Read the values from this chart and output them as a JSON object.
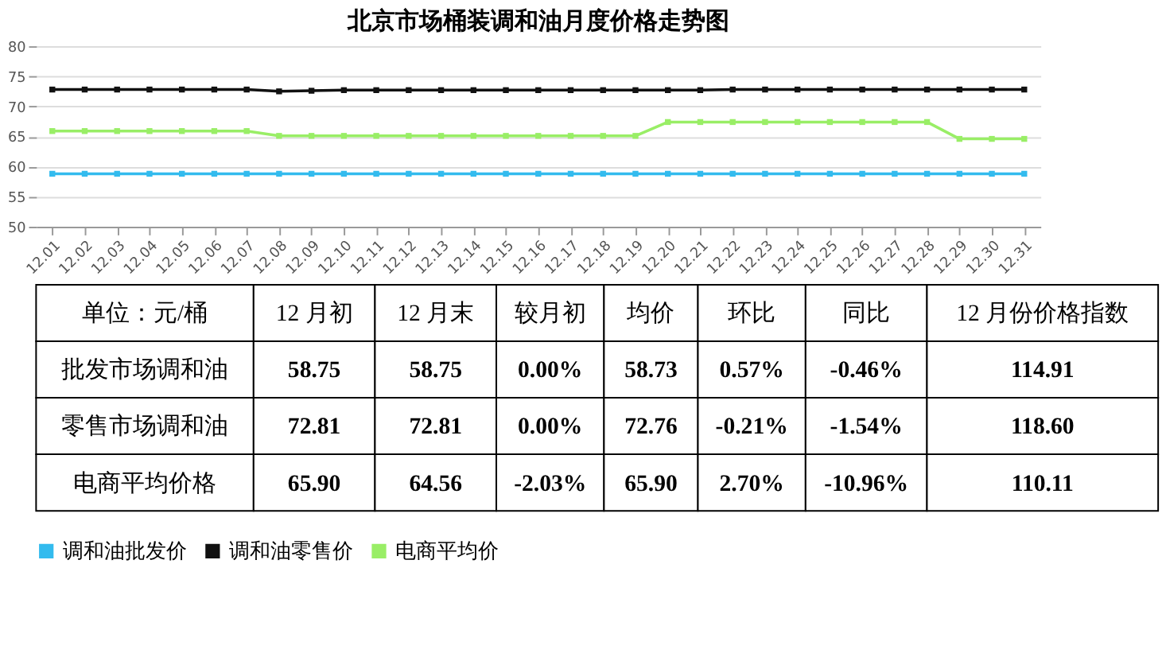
{
  "chart_data": [
    {
      "type": "line",
      "title": "北京市场桶装调和油月度价格走势图",
      "categories": [
        "12.01",
        "12.02",
        "12.03",
        "12.04",
        "12.05",
        "12.06",
        "12.07",
        "12.08",
        "12.09",
        "12.10",
        "12.11",
        "12.12",
        "12.13",
        "12.14",
        "12.15",
        "12.16",
        "12.17",
        "12.18",
        "12.19",
        "12.20",
        "12.21",
        "12.22",
        "12.23",
        "12.24",
        "12.25",
        "12.26",
        "12.27",
        "12.28",
        "12.29",
        "12.30",
        "12.31"
      ],
      "series": [
        {
          "name": "调和油批发价",
          "color": "#33bbee",
          "values": [
            58.8,
            58.8,
            58.8,
            58.8,
            58.8,
            58.8,
            58.8,
            58.8,
            58.8,
            58.8,
            58.8,
            58.8,
            58.8,
            58.8,
            58.8,
            58.8,
            58.8,
            58.8,
            58.8,
            58.8,
            58.8,
            58.8,
            58.8,
            58.8,
            58.8,
            58.8,
            58.8,
            58.8,
            58.8,
            58.8,
            58.8
          ]
        },
        {
          "name": "调和油零售价",
          "color": "#111111",
          "values": [
            72.8,
            72.8,
            72.8,
            72.8,
            72.8,
            72.8,
            72.8,
            72.5,
            72.6,
            72.7,
            72.7,
            72.7,
            72.7,
            72.7,
            72.7,
            72.7,
            72.7,
            72.7,
            72.7,
            72.7,
            72.7,
            72.8,
            72.8,
            72.8,
            72.8,
            72.8,
            72.8,
            72.8,
            72.8,
            72.8,
            72.8
          ]
        },
        {
          "name": "电商平均价",
          "color": "#99ee66",
          "values": [
            65.9,
            65.9,
            65.9,
            65.9,
            65.9,
            65.9,
            65.9,
            65.1,
            65.1,
            65.1,
            65.1,
            65.1,
            65.1,
            65.1,
            65.1,
            65.1,
            65.1,
            65.1,
            65.1,
            67.4,
            67.4,
            67.4,
            67.4,
            67.4,
            67.4,
            67.4,
            67.4,
            67.4,
            64.6,
            64.6,
            64.6
          ]
        }
      ],
      "ylim": [
        50,
        80
      ],
      "yticks": [
        50,
        55,
        60,
        65,
        70,
        75,
        80
      ],
      "grid": "y",
      "legend": "bottom",
      "marker": "square",
      "line_style": "solid"
    },
    {
      "type": "other",
      "categories": [
        "单位：元/桶",
        "12 月初",
        "12 月末",
        "较月初",
        "均价",
        "环比",
        "同比",
        "12 月份价格指数"
      ],
      "annotations": [
        "批发市场调和油",
        "58.75",
        "58.75",
        "0.00%",
        "58.73",
        "0.57%",
        "-0.46%",
        "114.91",
        "零售市场调和油",
        "72.81",
        "72.81",
        "0.00%",
        "72.76",
        "-0.21%",
        "-1.54%",
        "118.60",
        "电商平均价格",
        "65.90",
        "64.56",
        "-2.03%",
        "65.90",
        "2.70%",
        "-10.96%",
        "110.11"
      ]
    }
  ]
}
